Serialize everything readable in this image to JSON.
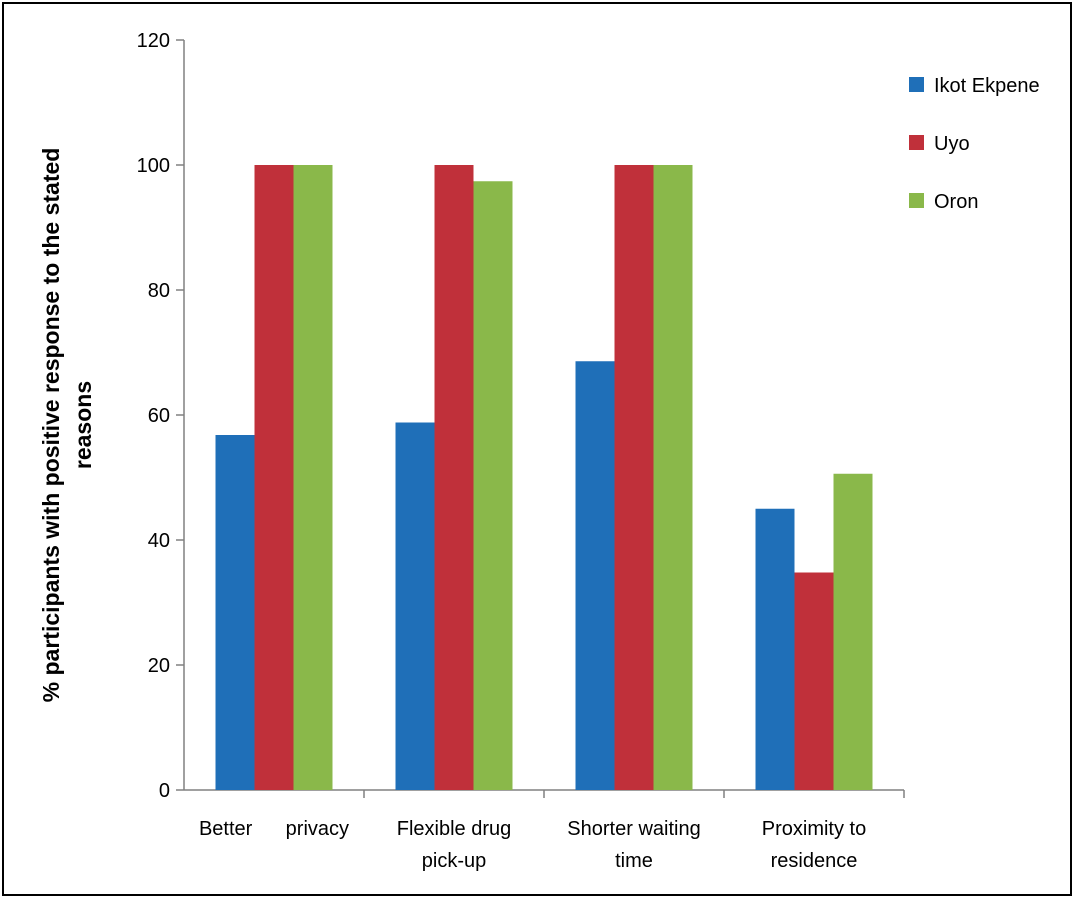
{
  "chart_data": {
    "type": "bar",
    "title": "",
    "xlabel": "",
    "ylabel_lines": [
      "% participants with positive response to the stated",
      "reasons"
    ],
    "ylim": [
      0,
      120
    ],
    "yticks": [
      0,
      20,
      40,
      60,
      80,
      100,
      120
    ],
    "grid": false,
    "legend_position": "top-right",
    "categories": [
      [
        "Better      privacy"
      ],
      [
        "Flexible drug",
        "pick-up"
      ],
      [
        "Shorter waiting",
        "time"
      ],
      [
        "Proximity to",
        "residence"
      ]
    ],
    "series": [
      {
        "name": "Ikot Ekpene",
        "color": "#1f6fb8",
        "values": [
          56.8,
          58.8,
          68.6,
          45.0
        ]
      },
      {
        "name": "Uyo",
        "color": "#c0303a",
        "values": [
          100,
          100,
          100,
          34.8
        ]
      },
      {
        "name": "Oron",
        "color": "#8ab84a",
        "values": [
          100,
          97.4,
          100,
          50.6
        ]
      }
    ]
  }
}
